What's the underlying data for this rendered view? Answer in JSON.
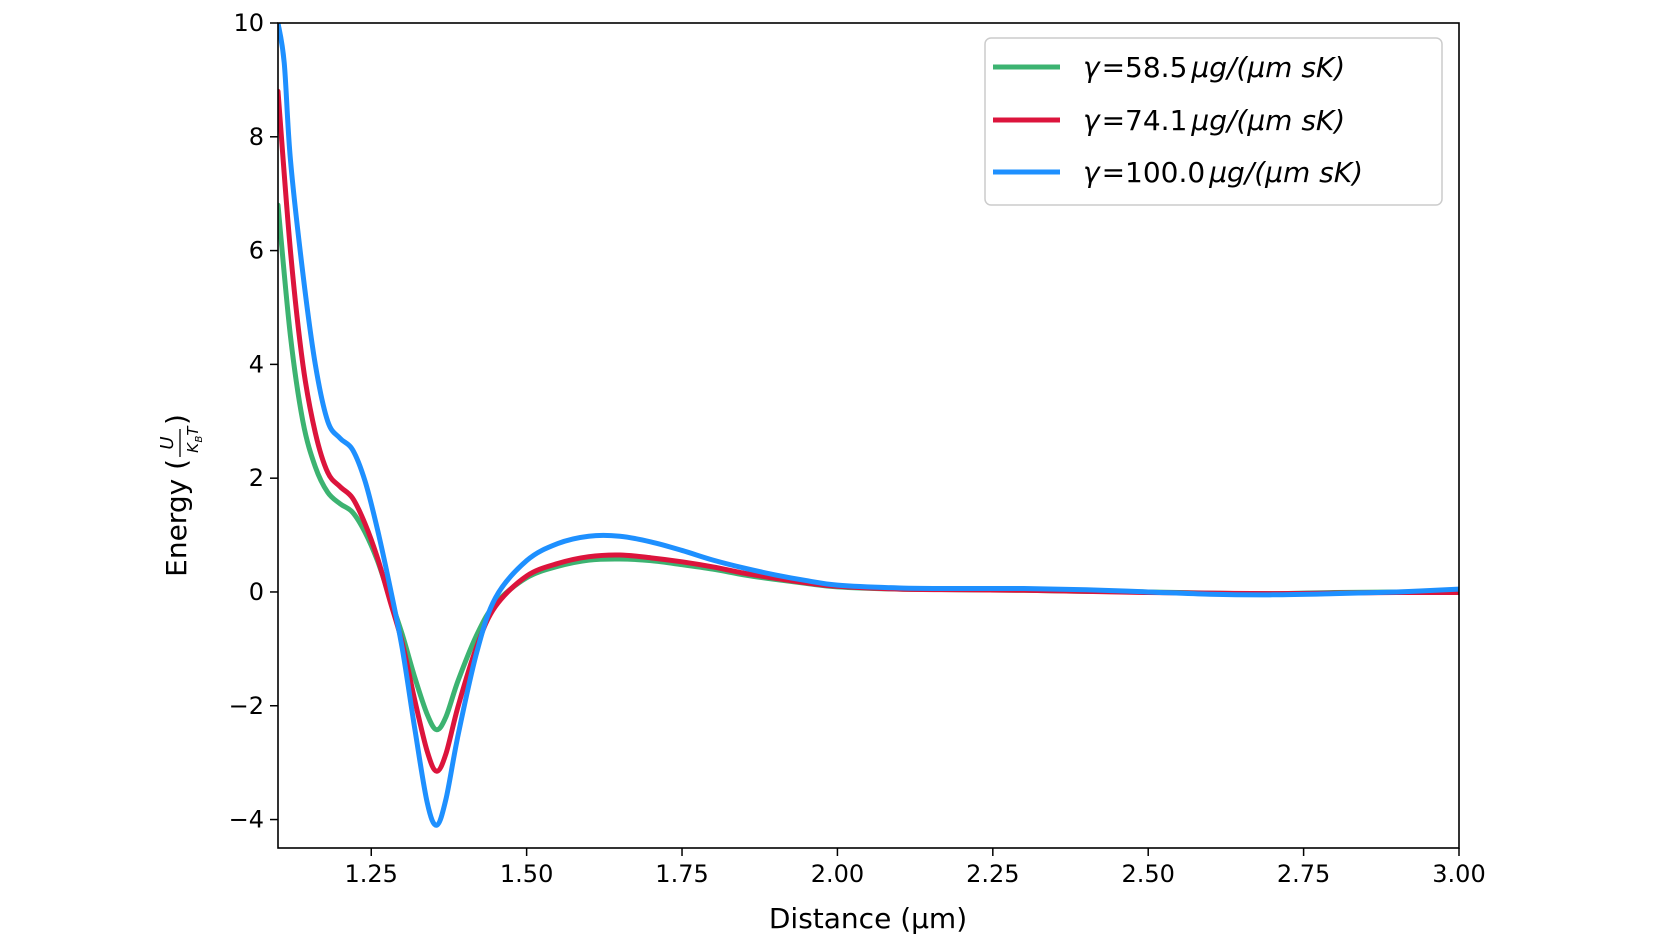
{
  "chart_data": {
    "type": "line",
    "title": "",
    "xlabel": "Distance (μm)",
    "ylabel": "Energy (U/K_BT)",
    "ylabel_prefix": "Energy (",
    "ylabel_frac_num": "U",
    "ylabel_frac_den_main": "K",
    "ylabel_frac_den_sub": "B",
    "ylabel_frac_den_tail": "T",
    "ylabel_suffix": ")",
    "xlim": [
      1.1,
      3.0
    ],
    "ylim": [
      -4.5,
      10
    ],
    "xticks": [
      1.25,
      1.5,
      1.75,
      2.0,
      2.25,
      2.5,
      2.75,
      3.0
    ],
    "xtick_labels": [
      "1.25",
      "1.50",
      "1.75",
      "2.00",
      "2.25",
      "2.50",
      "2.75",
      "3.00"
    ],
    "yticks": [
      -4,
      -2,
      0,
      2,
      4,
      6,
      8,
      10
    ],
    "ytick_labels": [
      "−4",
      "−2",
      "0",
      "2",
      "4",
      "6",
      "8",
      "10"
    ],
    "grid": false,
    "legend_position": "top-right",
    "series": [
      {
        "name": "γ = 58.5 μg/(μm sK)",
        "color": "#3cb371",
        "points": [
          [
            1.1,
            6.8
          ],
          [
            1.12,
            4.5
          ],
          [
            1.14,
            3.0
          ],
          [
            1.16,
            2.2
          ],
          [
            1.18,
            1.75
          ],
          [
            1.2,
            1.55
          ],
          [
            1.22,
            1.4
          ],
          [
            1.24,
            1.05
          ],
          [
            1.26,
            0.55
          ],
          [
            1.28,
            -0.1
          ],
          [
            1.3,
            -0.75
          ],
          [
            1.32,
            -1.5
          ],
          [
            1.34,
            -2.15
          ],
          [
            1.355,
            -2.42
          ],
          [
            1.37,
            -2.2
          ],
          [
            1.39,
            -1.55
          ],
          [
            1.42,
            -0.75
          ],
          [
            1.45,
            -0.2
          ],
          [
            1.5,
            0.25
          ],
          [
            1.55,
            0.45
          ],
          [
            1.6,
            0.56
          ],
          [
            1.65,
            0.58
          ],
          [
            1.7,
            0.55
          ],
          [
            1.75,
            0.48
          ],
          [
            1.8,
            0.4
          ],
          [
            1.85,
            0.3
          ],
          [
            1.9,
            0.22
          ],
          [
            1.95,
            0.15
          ],
          [
            2.0,
            0.09
          ],
          [
            2.1,
            0.05
          ],
          [
            2.2,
            0.04
          ],
          [
            2.3,
            0.03
          ],
          [
            2.4,
            0.01
          ],
          [
            2.5,
            0.0
          ],
          [
            2.6,
            -0.02
          ],
          [
            2.7,
            -0.03
          ],
          [
            2.8,
            -0.01
          ],
          [
            2.9,
            0.0
          ],
          [
            3.0,
            0.0
          ]
        ]
      },
      {
        "name": "γ = 74.1 μg/(μm sK)",
        "color": "#dc143c",
        "points": [
          [
            1.1,
            8.8
          ],
          [
            1.12,
            6.0
          ],
          [
            1.14,
            4.0
          ],
          [
            1.16,
            2.8
          ],
          [
            1.18,
            2.1
          ],
          [
            1.2,
            1.85
          ],
          [
            1.22,
            1.65
          ],
          [
            1.24,
            1.2
          ],
          [
            1.26,
            0.6
          ],
          [
            1.28,
            -0.15
          ],
          [
            1.3,
            -0.9
          ],
          [
            1.32,
            -1.9
          ],
          [
            1.34,
            -2.8
          ],
          [
            1.355,
            -3.15
          ],
          [
            1.37,
            -2.85
          ],
          [
            1.39,
            -2.0
          ],
          [
            1.42,
            -0.95
          ],
          [
            1.45,
            -0.25
          ],
          [
            1.5,
            0.28
          ],
          [
            1.55,
            0.5
          ],
          [
            1.6,
            0.62
          ],
          [
            1.65,
            0.65
          ],
          [
            1.7,
            0.6
          ],
          [
            1.75,
            0.53
          ],
          [
            1.8,
            0.44
          ],
          [
            1.85,
            0.33
          ],
          [
            1.9,
            0.24
          ],
          [
            1.95,
            0.16
          ],
          [
            2.0,
            0.1
          ],
          [
            2.1,
            0.05
          ],
          [
            2.2,
            0.04
          ],
          [
            2.3,
            0.03
          ],
          [
            2.4,
            0.01
          ],
          [
            2.5,
            -0.01
          ],
          [
            2.6,
            -0.02
          ],
          [
            2.7,
            -0.03
          ],
          [
            2.8,
            -0.02
          ],
          [
            2.9,
            -0.01
          ],
          [
            3.0,
            -0.01
          ]
        ]
      },
      {
        "name": "γ = 100.0 μg/(μm sK)",
        "color": "#1e90ff",
        "points": [
          [
            1.1,
            10.0
          ],
          [
            1.11,
            9.3
          ],
          [
            1.12,
            7.6
          ],
          [
            1.14,
            5.6
          ],
          [
            1.16,
            4.0
          ],
          [
            1.18,
            3.0
          ],
          [
            1.2,
            2.7
          ],
          [
            1.22,
            2.5
          ],
          [
            1.24,
            1.95
          ],
          [
            1.26,
            1.1
          ],
          [
            1.28,
            0.1
          ],
          [
            1.3,
            -1.0
          ],
          [
            1.32,
            -2.4
          ],
          [
            1.34,
            -3.7
          ],
          [
            1.355,
            -4.1
          ],
          [
            1.37,
            -3.65
          ],
          [
            1.39,
            -2.5
          ],
          [
            1.42,
            -1.05
          ],
          [
            1.45,
            -0.1
          ],
          [
            1.5,
            0.55
          ],
          [
            1.55,
            0.85
          ],
          [
            1.6,
            0.98
          ],
          [
            1.65,
            0.98
          ],
          [
            1.7,
            0.88
          ],
          [
            1.75,
            0.73
          ],
          [
            1.8,
            0.56
          ],
          [
            1.85,
            0.42
          ],
          [
            1.9,
            0.3
          ],
          [
            1.95,
            0.2
          ],
          [
            2.0,
            0.12
          ],
          [
            2.1,
            0.07
          ],
          [
            2.2,
            0.06
          ],
          [
            2.3,
            0.06
          ],
          [
            2.4,
            0.04
          ],
          [
            2.5,
            0.0
          ],
          [
            2.6,
            -0.04
          ],
          [
            2.7,
            -0.05
          ],
          [
            2.8,
            -0.03
          ],
          [
            2.9,
            0.0
          ],
          [
            3.0,
            0.05
          ]
        ]
      }
    ],
    "legend": [
      {
        "gamma": "γ",
        "eq": "=",
        "value": "58.5",
        "units": "μg/(μm sK)"
      },
      {
        "gamma": "γ",
        "eq": "=",
        "value": "74.1",
        "units": "μg/(μm sK)"
      },
      {
        "gamma": "γ",
        "eq": "=",
        "value": "100.0",
        "units": "μg/(μm sK)"
      }
    ]
  }
}
